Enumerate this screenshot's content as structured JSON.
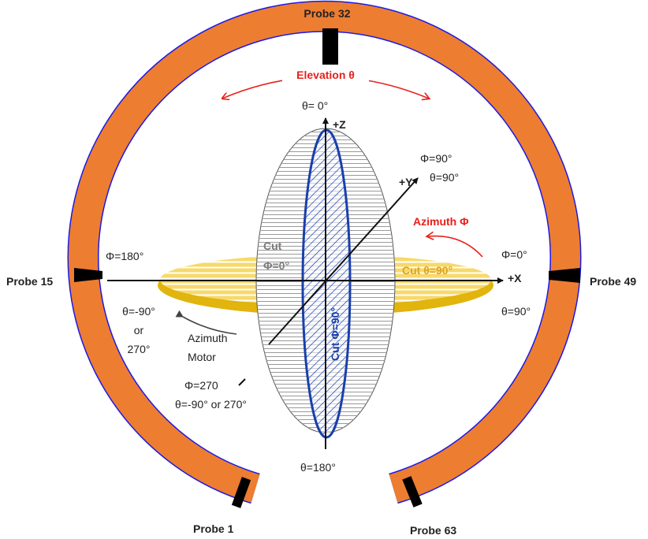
{
  "probes": {
    "top": "Probe 32",
    "left": "Probe 15",
    "right": "Probe 49",
    "bottom_left": "Probe 1",
    "bottom_right": "Probe 63"
  },
  "elevation_label": "Elevation θ",
  "azimuth_label": "Azimuth Φ",
  "axes": {
    "z": "+Z",
    "y": "+Y",
    "x": "+X"
  },
  "angles": {
    "top_theta": "θ= 0°",
    "y_phi": "Φ=90°",
    "y_theta": "θ=90°",
    "left_phi": "Φ=180°",
    "right_phi": "Φ=0°",
    "left_theta_1": "θ=-90°",
    "left_theta_2": "or",
    "left_theta_3": "270°",
    "right_theta": "θ=90°",
    "bottom_theta": "θ=180°",
    "phi_270": "Φ=270",
    "theta_270": "θ=-90° or 270°"
  },
  "cuts": {
    "phi0_line1": "Cut",
    "phi0_line2": "Φ=0°",
    "theta90": "Cut  θ=90°",
    "phi90": "Cut  Φ=90°"
  },
  "motor": {
    "line1": "Azimuth",
    "line2": "Motor"
  },
  "colors": {
    "ring": "#ED7D31",
    "ring_border": "#1A1AE6",
    "probe": "#000000",
    "annotation_red": "#E8201A",
    "equator_fill": "#F7D96B",
    "equator_edge": "#D4A20A",
    "hatch_gray": "#9A9A9A",
    "hatch_blue": "#1C3FA8",
    "axis": "#111111"
  }
}
